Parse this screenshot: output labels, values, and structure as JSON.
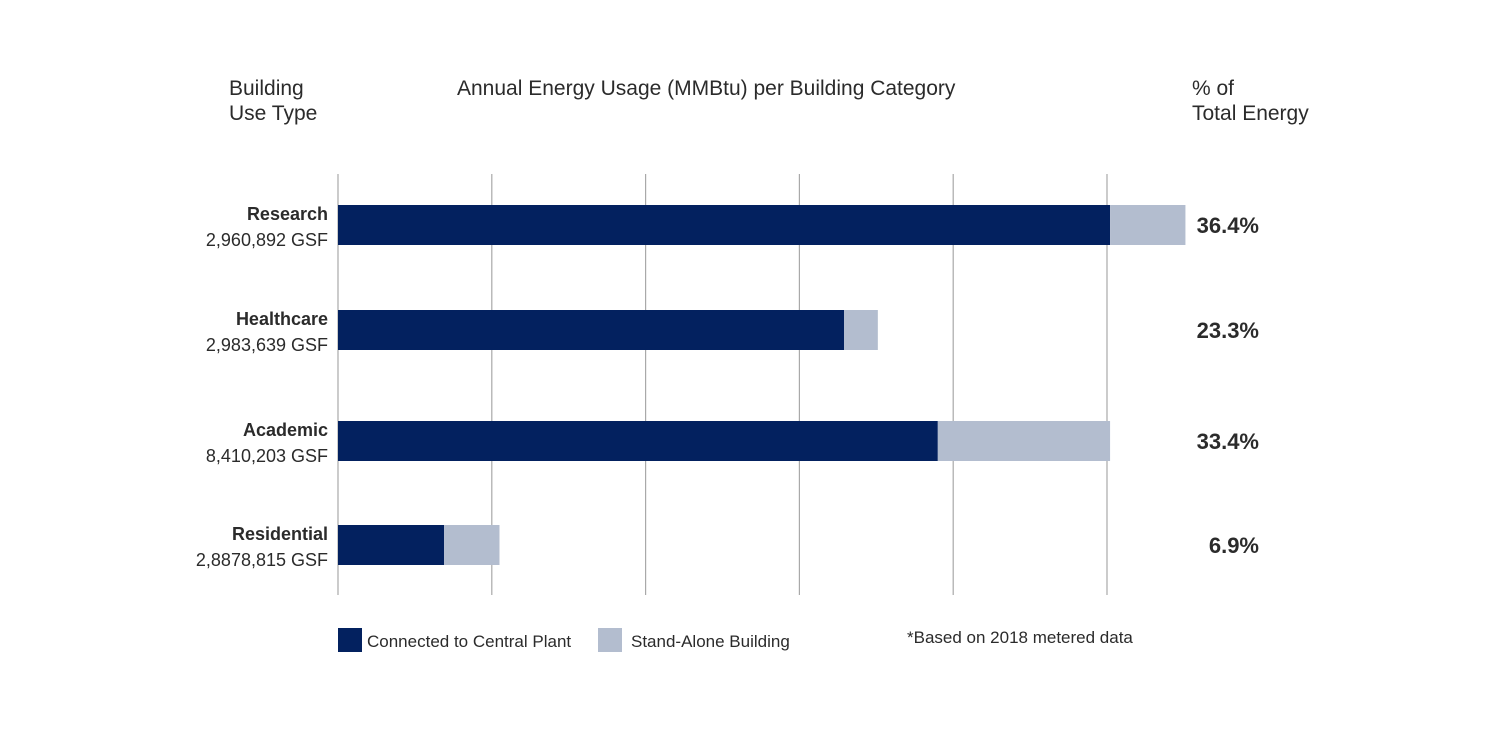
{
  "chart_data": {
    "type": "bar",
    "orientation": "horizontal",
    "stacked": true,
    "title": "Annual Energy Usage (MMBtu) per Building Category",
    "category_header": [
      "Building",
      "Use Type"
    ],
    "share_header": [
      "% of",
      "Total Energy"
    ],
    "categories": [
      "Research",
      "Healthcare",
      "Academic",
      "Residential"
    ],
    "category_sublabels": [
      "2,960,892 GSF",
      "2,983,639 GSF",
      "8,410,203 GSF",
      "2,8878,815 GSF"
    ],
    "series": [
      {
        "name": "Connected to Central Plant",
        "color": "#03215f",
        "values": [
          5.02,
          3.29,
          3.9,
          0.69
        ]
      },
      {
        "name": "Stand-Alone Building",
        "color": "#b3bdcf",
        "values": [
          0.49,
          0.22,
          1.12,
          0.36
        ]
      }
    ],
    "share_of_total": [
      "36.4%",
      "23.3%",
      "33.4%",
      "6.9%"
    ],
    "xlim": [
      0,
      5.5
    ],
    "x_gridlines": [
      0,
      1,
      2,
      3,
      4,
      5
    ],
    "grid": true,
    "legend_position": "bottom-left",
    "footnote": "*Based on 2018 metered data"
  },
  "colors": {
    "grid": "#a9a9a9",
    "text": "#2b2b2b"
  }
}
